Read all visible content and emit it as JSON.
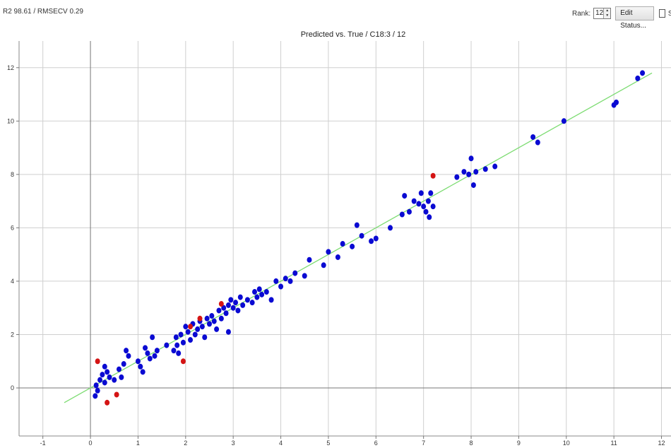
{
  "header": {
    "stats": "R2 98.61 / RMSECV 0.29",
    "rank_label": "Rank:",
    "rank_value": "12",
    "edit_status_label": "Edit Status...",
    "show_checkbox_label": "Sh"
  },
  "colors": {
    "point_included": "#0a0ad2",
    "point_excluded": "#d41414",
    "fit_line": "#7ddc72",
    "grid": "#cfcfcf"
  },
  "chart_data": {
    "type": "scatter",
    "title": "Predicted vs. True / C18:3 / 12",
    "xlabel": "",
    "ylabel": "",
    "xlim": [
      -1.5,
      12.2
    ],
    "ylim": [
      -1.8,
      13.0
    ],
    "grid": true,
    "x_ticks": [
      -1,
      0,
      1,
      2,
      3,
      4,
      5,
      6,
      7,
      8,
      9,
      10,
      11,
      12
    ],
    "y_ticks": [
      0,
      2,
      4,
      6,
      8,
      10,
      12
    ],
    "x_tick_labels": [
      "-1",
      "0",
      "1",
      "2",
      "3",
      "4",
      "5",
      "6",
      "7",
      "8",
      "9",
      "10",
      "11",
      "12"
    ],
    "y_tick_labels": [
      "0",
      "2",
      "4",
      "6",
      "8",
      "10",
      "12"
    ],
    "fit_line": {
      "x": [
        -0.55,
        11.8
      ],
      "y": [
        -0.55,
        11.8
      ]
    },
    "series": [
      {
        "role": "included",
        "points": [
          [
            0.1,
            -0.3
          ],
          [
            0.12,
            0.1
          ],
          [
            0.15,
            -0.1
          ],
          [
            0.2,
            0.3
          ],
          [
            0.25,
            0.5
          ],
          [
            0.3,
            0.2
          ],
          [
            0.35,
            0.6
          ],
          [
            0.3,
            0.8
          ],
          [
            0.4,
            0.4
          ],
          [
            0.5,
            0.3
          ],
          [
            0.6,
            0.7
          ],
          [
            0.65,
            0.4
          ],
          [
            0.7,
            0.9
          ],
          [
            0.75,
            1.4
          ],
          [
            0.8,
            1.2
          ],
          [
            1.0,
            1.0
          ],
          [
            1.05,
            0.8
          ],
          [
            1.1,
            0.6
          ],
          [
            1.15,
            1.5
          ],
          [
            1.2,
            1.3
          ],
          [
            1.25,
            1.1
          ],
          [
            1.3,
            1.9
          ],
          [
            1.35,
            1.2
          ],
          [
            1.4,
            1.4
          ],
          [
            1.6,
            1.6
          ],
          [
            1.75,
            1.4
          ],
          [
            1.8,
            1.9
          ],
          [
            1.82,
            1.6
          ],
          [
            1.85,
            1.3
          ],
          [
            1.9,
            2.0
          ],
          [
            1.95,
            1.7
          ],
          [
            2.0,
            2.3
          ],
          [
            2.05,
            2.1
          ],
          [
            2.1,
            1.8
          ],
          [
            2.15,
            2.4
          ],
          [
            2.2,
            2.0
          ],
          [
            2.25,
            2.2
          ],
          [
            2.3,
            2.5
          ],
          [
            2.35,
            2.3
          ],
          [
            2.4,
            1.9
          ],
          [
            2.45,
            2.6
          ],
          [
            2.5,
            2.4
          ],
          [
            2.55,
            2.7
          ],
          [
            2.6,
            2.5
          ],
          [
            2.65,
            2.2
          ],
          [
            2.7,
            2.9
          ],
          [
            2.75,
            2.6
          ],
          [
            2.8,
            3.0
          ],
          [
            2.85,
            2.8
          ],
          [
            2.9,
            3.1
          ],
          [
            2.9,
            2.1
          ],
          [
            2.95,
            3.3
          ],
          [
            3.0,
            3.0
          ],
          [
            3.05,
            3.2
          ],
          [
            3.1,
            2.9
          ],
          [
            3.15,
            3.4
          ],
          [
            3.2,
            3.1
          ],
          [
            3.3,
            3.3
          ],
          [
            3.4,
            3.2
          ],
          [
            3.45,
            3.6
          ],
          [
            3.5,
            3.4
          ],
          [
            3.55,
            3.7
          ],
          [
            3.6,
            3.5
          ],
          [
            3.7,
            3.6
          ],
          [
            3.8,
            3.3
          ],
          [
            3.9,
            4.0
          ],
          [
            4.0,
            3.8
          ],
          [
            4.1,
            4.1
          ],
          [
            4.2,
            4.0
          ],
          [
            4.3,
            4.3
          ],
          [
            4.5,
            4.2
          ],
          [
            4.6,
            4.8
          ],
          [
            4.9,
            4.6
          ],
          [
            5.0,
            5.1
          ],
          [
            5.2,
            4.9
          ],
          [
            5.3,
            5.4
          ],
          [
            5.5,
            5.3
          ],
          [
            5.6,
            6.1
          ],
          [
            5.7,
            5.7
          ],
          [
            5.9,
            5.5
          ],
          [
            6.0,
            5.6
          ],
          [
            6.3,
            6.0
          ],
          [
            6.55,
            6.5
          ],
          [
            6.6,
            7.2
          ],
          [
            6.7,
            6.6
          ],
          [
            6.8,
            7.0
          ],
          [
            6.9,
            6.9
          ],
          [
            6.95,
            7.3
          ],
          [
            7.0,
            6.8
          ],
          [
            7.05,
            6.6
          ],
          [
            7.1,
            7.0
          ],
          [
            7.12,
            6.4
          ],
          [
            7.15,
            7.3
          ],
          [
            7.2,
            6.8
          ],
          [
            7.7,
            7.9
          ],
          [
            7.85,
            8.1
          ],
          [
            7.95,
            8.0
          ],
          [
            8.0,
            8.6
          ],
          [
            8.05,
            7.6
          ],
          [
            8.1,
            8.1
          ],
          [
            8.3,
            8.2
          ],
          [
            8.5,
            8.3
          ],
          [
            9.3,
            9.4
          ],
          [
            9.4,
            9.2
          ],
          [
            9.95,
            10.0
          ],
          [
            11.0,
            10.6
          ],
          [
            11.05,
            10.7
          ],
          [
            11.5,
            11.6
          ],
          [
            11.6,
            11.8
          ]
        ]
      },
      {
        "role": "excluded",
        "points": [
          [
            0.15,
            1.0
          ],
          [
            0.35,
            -0.55
          ],
          [
            0.55,
            -0.25
          ],
          [
            1.95,
            1.0
          ],
          [
            2.1,
            2.3
          ],
          [
            2.3,
            2.6
          ],
          [
            2.75,
            3.15
          ],
          [
            7.2,
            7.95
          ]
        ]
      }
    ]
  }
}
